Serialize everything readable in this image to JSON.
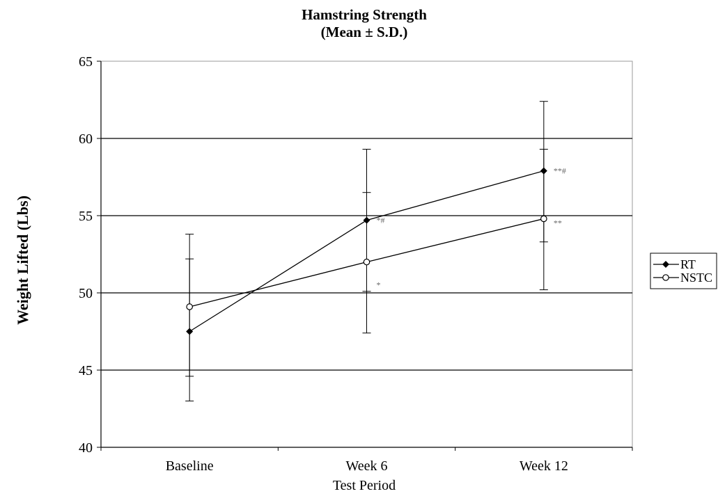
{
  "chart_data": {
    "type": "line",
    "title": "Hamstring Strength",
    "subtitle": "(Mean ±  S.D.)",
    "xlabel": "Test Period",
    "ylabel": "Weight Lifted (Lbs)",
    "categories": [
      "Baseline",
      "Week 6",
      "Week 12"
    ],
    "ylim": [
      40,
      65
    ],
    "yticks": [
      "40",
      "45",
      "50",
      "55",
      "60",
      "65"
    ],
    "grid": true,
    "legend_position": "right",
    "series": [
      {
        "name": "RT",
        "marker": "filled-diamond",
        "color": "#000000",
        "values": [
          47.5,
          54.7,
          57.9
        ],
        "error_low": [
          43.0,
          50.1,
          53.3
        ],
        "error_high": [
          52.2,
          59.3,
          62.4
        ],
        "annotations": [
          "",
          "*#",
          "**#"
        ]
      },
      {
        "name": "NSTC",
        "marker": "open-circle",
        "color": "#000000",
        "values": [
          49.1,
          52.0,
          54.8
        ],
        "error_low": [
          44.6,
          47.4,
          50.2
        ],
        "error_high": [
          53.8,
          56.5,
          59.3
        ],
        "annotations": [
          "",
          "*",
          "**"
        ]
      }
    ]
  }
}
